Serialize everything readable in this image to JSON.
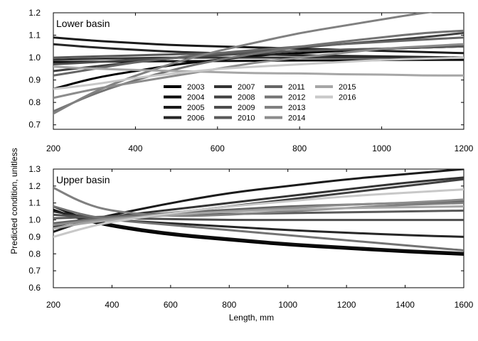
{
  "y_axis_label": "Predicted condition, unitless",
  "chart_data": [
    {
      "type": "line",
      "title": "Lower basin",
      "xlabel": "",
      "ylabel": "Predicted condition, unitless",
      "xlim": [
        200,
        1200
      ],
      "ylim": [
        0.68,
        1.2
      ],
      "xticks": [
        200,
        400,
        600,
        800,
        1000,
        1200
      ],
      "yticks": [
        0.7,
        0.8,
        0.9,
        1.0,
        1.1,
        1.2
      ],
      "ytick_labels": [
        "0.7",
        "0.8",
        "0.9",
        "1.0",
        "1.1",
        "1.2"
      ],
      "grid": false,
      "legend": "bottom-center",
      "series": [
        {
          "name": "2003",
          "color": "#000000",
          "x": [
            200,
            300,
            400,
            500,
            600,
            700,
            800,
            900,
            1000,
            1100,
            1200
          ],
          "y": [
            0.86,
            0.91,
            0.94,
            0.97,
            0.99,
            1.01,
            1.02,
            1.03,
            1.04,
            1.045,
            1.05
          ]
        },
        {
          "name": "2004",
          "color": "#0d0d0d",
          "x": [
            200,
            300,
            400,
            500,
            600,
            700,
            800,
            900,
            1000,
            1100,
            1200
          ],
          "y": [
            0.98,
            0.982,
            0.983,
            0.984,
            0.985,
            0.986,
            0.987,
            0.988,
            0.989,
            0.99,
            0.99
          ]
        },
        {
          "name": "2005",
          "color": "#1a1a1a",
          "x": [
            200,
            300,
            400,
            500,
            600,
            700,
            800,
            900,
            1000,
            1100,
            1200
          ],
          "y": [
            1.09,
            1.075,
            1.065,
            1.055,
            1.05,
            1.045,
            1.04,
            1.035,
            1.03,
            1.025,
            1.02
          ]
        },
        {
          "name": "2006",
          "color": "#262626",
          "x": [
            200,
            300,
            400,
            500,
            600,
            700,
            800,
            900,
            1000,
            1100,
            1200
          ],
          "y": [
            1.06,
            1.045,
            1.035,
            1.025,
            1.02,
            1.015,
            1.01,
            1.008,
            1.005,
            1.003,
            1.0
          ]
        },
        {
          "name": "2007",
          "color": "#333333",
          "x": [
            200,
            300,
            400,
            500,
            600,
            700,
            800,
            900,
            1000,
            1100,
            1200
          ],
          "y": [
            0.99,
            0.995,
            0.998,
            1.0,
            1.0,
            1.0,
            1.0,
            1.0,
            1.0,
            1.0,
            1.0
          ]
        },
        {
          "name": "2008",
          "color": "#404040",
          "x": [
            200,
            300,
            400,
            500,
            600,
            700,
            800,
            900,
            1000,
            1100,
            1200
          ],
          "y": [
            0.94,
            0.96,
            0.98,
            1.0,
            1.015,
            1.03,
            1.045,
            1.06,
            1.075,
            1.09,
            1.11
          ]
        },
        {
          "name": "2009",
          "color": "#4d4d4d",
          "x": [
            200,
            300,
            400,
            500,
            600,
            700,
            800,
            900,
            1000,
            1100,
            1200
          ],
          "y": [
            0.97,
            0.98,
            0.99,
            1.0,
            1.01,
            1.02,
            1.03,
            1.035,
            1.04,
            1.045,
            1.05
          ]
        },
        {
          "name": "2010",
          "color": "#595959",
          "x": [
            200,
            300,
            400,
            500,
            600,
            700,
            800,
            900,
            1000,
            1100,
            1200
          ],
          "y": [
            1.0,
            1.005,
            1.01,
            1.015,
            1.02,
            1.025,
            1.03,
            1.035,
            1.04,
            1.045,
            1.05
          ]
        },
        {
          "name": "2011",
          "color": "#666666",
          "x": [
            200,
            300,
            400,
            500,
            600,
            700,
            800,
            900,
            1000,
            1100,
            1200
          ],
          "y": [
            0.92,
            0.95,
            0.98,
            1.0,
            1.02,
            1.035,
            1.05,
            1.06,
            1.07,
            1.08,
            1.09
          ]
        },
        {
          "name": "2012",
          "color": "#737373",
          "x": [
            200,
            300,
            400,
            500,
            600,
            700,
            800,
            900,
            1000,
            1100,
            1200
          ],
          "y": [
            0.76,
            0.84,
            0.9,
            0.95,
            0.99,
            1.02,
            1.05,
            1.07,
            1.09,
            1.11,
            1.12
          ]
        },
        {
          "name": "2013",
          "color": "#808080",
          "x": [
            200,
            300,
            400,
            500,
            600,
            700,
            800,
            900,
            1000,
            1100,
            1200
          ],
          "y": [
            0.75,
            0.85,
            0.92,
            0.98,
            1.03,
            1.07,
            1.11,
            1.14,
            1.17,
            1.2,
            1.22
          ]
        },
        {
          "name": "2014",
          "color": "#8c8c8c",
          "x": [
            200,
            300,
            400,
            500,
            600,
            700,
            800,
            900,
            1000,
            1100,
            1200
          ],
          "y": [
            0.82,
            0.86,
            0.89,
            0.92,
            0.95,
            0.98,
            1.0,
            1.02,
            1.04,
            1.05,
            1.06
          ]
        },
        {
          "name": "2015",
          "color": "#a6a6a6",
          "x": [
            200,
            300,
            400,
            500,
            600,
            700,
            800,
            900,
            1000,
            1100,
            1200
          ],
          "y": [
            0.96,
            0.95,
            0.945,
            0.94,
            0.935,
            0.93,
            0.93,
            0.925,
            0.925,
            0.92,
            0.92
          ]
        },
        {
          "name": "2016",
          "color": "#c8c8c8",
          "x": [
            200,
            300,
            400,
            500,
            600,
            700,
            800,
            900,
            1000,
            1100,
            1200
          ],
          "y": [
            0.86,
            0.88,
            0.91,
            0.93,
            0.95,
            0.96,
            0.97,
            0.98,
            0.99,
            0.995,
            1.0
          ]
        }
      ]
    },
    {
      "type": "line",
      "title": "Upper basin",
      "xlabel": "Length, mm",
      "ylabel": "Predicted condition, unitless",
      "xlim": [
        200,
        1600
      ],
      "ylim": [
        0.6,
        1.3
      ],
      "xticks": [
        200,
        400,
        600,
        800,
        1000,
        1200,
        1400,
        1600
      ],
      "yticks": [
        0.6,
        0.7,
        0.8,
        0.9,
        1.0,
        1.1,
        1.2,
        1.3
      ],
      "ytick_labels": [
        "0.6",
        "0.7",
        "0.8",
        "0.9",
        "1.0",
        "1.1",
        "1.2",
        "1.3"
      ],
      "grid": false,
      "series": [
        {
          "name": "2003",
          "color": "#000000",
          "x": [
            200,
            300,
            400,
            600,
            800,
            1000,
            1200,
            1400,
            1600
          ],
          "y": [
            1.06,
            1.0,
            0.96,
            0.91,
            0.88,
            0.85,
            0.83,
            0.81,
            0.795
          ]
        },
        {
          "name": "2004",
          "color": "#0d0d0d",
          "x": [
            200,
            300,
            400,
            600,
            800,
            1000,
            1200,
            1400,
            1600
          ],
          "y": [
            1.08,
            1.01,
            0.97,
            0.92,
            0.89,
            0.86,
            0.84,
            0.82,
            0.805
          ]
        },
        {
          "name": "2005",
          "color": "#1a1a1a",
          "x": [
            200,
            300,
            400,
            600,
            800,
            1000,
            1200,
            1400,
            1600
          ],
          "y": [
            0.93,
            0.99,
            1.03,
            1.1,
            1.16,
            1.2,
            1.24,
            1.27,
            1.3
          ]
        },
        {
          "name": "2006",
          "color": "#262626",
          "x": [
            200,
            300,
            400,
            600,
            800,
            1000,
            1200,
            1400,
            1600
          ],
          "y": [
            1.05,
            1.02,
            1.0,
            0.98,
            0.96,
            0.94,
            0.925,
            0.91,
            0.9
          ]
        },
        {
          "name": "2007",
          "color": "#333333",
          "x": [
            200,
            300,
            400,
            600,
            800,
            1000,
            1200,
            1400,
            1600
          ],
          "y": [
            0.96,
            1.0,
            1.02,
            1.06,
            1.1,
            1.14,
            1.18,
            1.22,
            1.25
          ]
        },
        {
          "name": "2008",
          "color": "#404040",
          "x": [
            200,
            300,
            400,
            600,
            800,
            1000,
            1200,
            1400,
            1600
          ],
          "y": [
            0.97,
            0.99,
            1.01,
            1.04,
            1.08,
            1.12,
            1.16,
            1.2,
            1.24
          ]
        },
        {
          "name": "2009",
          "color": "#4d4d4d",
          "x": [
            200,
            300,
            400,
            600,
            800,
            1000,
            1200,
            1400,
            1600
          ],
          "y": [
            1.03,
            1.02,
            1.01,
            1.005,
            1.0,
            1.0,
            1.0,
            1.0,
            1.0
          ]
        },
        {
          "name": "2010",
          "color": "#595959",
          "x": [
            200,
            300,
            400,
            600,
            800,
            1000,
            1200,
            1400,
            1600
          ],
          "y": [
            1.01,
            1.015,
            1.02,
            1.03,
            1.035,
            1.04,
            1.045,
            1.05,
            1.055
          ]
        },
        {
          "name": "2011",
          "color": "#666666",
          "x": [
            200,
            300,
            400,
            600,
            800,
            1000,
            1200,
            1400,
            1600
          ],
          "y": [
            0.98,
            1.0,
            1.02,
            1.04,
            1.06,
            1.08,
            1.09,
            1.1,
            1.11
          ]
        },
        {
          "name": "2012",
          "color": "#737373",
          "x": [
            200,
            300,
            400,
            600,
            800,
            1000,
            1200,
            1400,
            1600
          ],
          "y": [
            1.08,
            1.03,
            1.0,
            0.97,
            0.94,
            0.91,
            0.88,
            0.85,
            0.82
          ]
        },
        {
          "name": "2013",
          "color": "#808080",
          "x": [
            200,
            300,
            400,
            600,
            800,
            1000,
            1200,
            1400,
            1600
          ],
          "y": [
            1.19,
            1.1,
            1.05,
            1.02,
            1.03,
            1.05,
            1.07,
            1.09,
            1.1
          ]
        },
        {
          "name": "2014",
          "color": "#8c8c8c",
          "x": [
            200,
            300,
            400,
            600,
            800,
            1000,
            1200,
            1400,
            1600
          ],
          "y": [
            0.97,
            0.99,
            1.01,
            1.03,
            1.05,
            1.07,
            1.09,
            1.1,
            1.12
          ]
        },
        {
          "name": "2015",
          "color": "#a6a6a6",
          "x": [
            200,
            300,
            400,
            600,
            800,
            1000,
            1200,
            1400,
            1600
          ],
          "y": [
            0.95,
            0.98,
            1.0,
            1.03,
            1.05,
            1.06,
            1.07,
            1.075,
            1.08
          ]
        },
        {
          "name": "2016",
          "color": "#c8c8c8",
          "x": [
            200,
            300,
            400,
            600,
            800,
            1000,
            1200,
            1400,
            1600
          ],
          "y": [
            0.9,
            0.95,
            0.99,
            1.04,
            1.08,
            1.11,
            1.14,
            1.16,
            1.18
          ]
        }
      ]
    }
  ]
}
